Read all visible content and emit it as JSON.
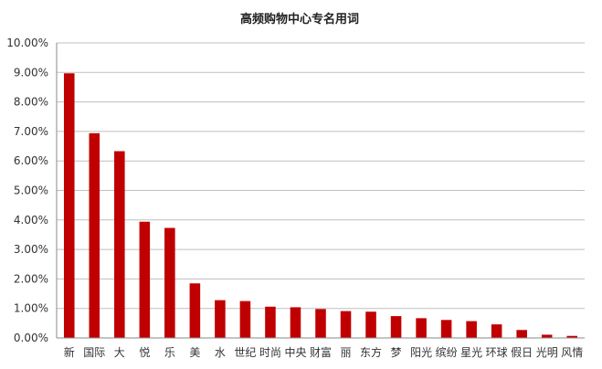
{
  "chart_data": {
    "type": "bar",
    "title": "高频购物中心专名用词",
    "xlabel": "",
    "ylabel": "",
    "categories": [
      "新",
      "国际",
      "大",
      "悦",
      "乐",
      "美",
      "水",
      "世纪",
      "时尚",
      "中央",
      "财富",
      "丽",
      "东方",
      "梦",
      "阳光",
      "缤纷",
      "星光",
      "环球",
      "假日",
      "光明",
      "风情"
    ],
    "values": [
      0.0897,
      0.0694,
      0.0633,
      0.0394,
      0.0373,
      0.0185,
      0.0128,
      0.0125,
      0.0106,
      0.0104,
      0.0098,
      0.0091,
      0.0089,
      0.0074,
      0.0067,
      0.0061,
      0.0057,
      0.0046,
      0.0027,
      0.0011,
      0.0007
    ],
    "ylim": [
      0,
      0.1
    ],
    "yticks": [
      "0.00%",
      "1.00%",
      "2.00%",
      "3.00%",
      "4.00%",
      "5.00%",
      "6.00%",
      "7.00%",
      "8.00%",
      "9.00%",
      "10.00%"
    ],
    "grid": true,
    "legend": "none",
    "bar_color": "#c00000",
    "grid_color": "#bfbfbf",
    "axis_color": "#888888"
  }
}
